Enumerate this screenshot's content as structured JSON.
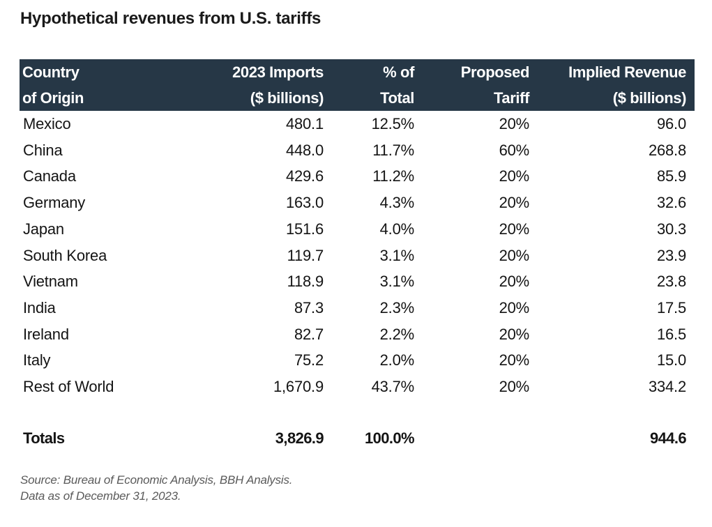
{
  "title": "Hypothetical revenues from U.S. tariffs",
  "table": {
    "columns": [
      {
        "line1": "Country",
        "line2": "of Origin"
      },
      {
        "line1": "2023 Imports",
        "line2": "($ billions)"
      },
      {
        "line1": "% of",
        "line2": "Total"
      },
      {
        "line1": "Proposed",
        "line2": "Tariff"
      },
      {
        "line1": "Implied Revenue",
        "line2": "($ billions)"
      }
    ],
    "rows": [
      {
        "country": "Mexico",
        "imports": "480.1",
        "pct_total": "12.5%",
        "tariff": "20%",
        "revenue": "96.0"
      },
      {
        "country": "China",
        "imports": "448.0",
        "pct_total": "11.7%",
        "tariff": "60%",
        "revenue": "268.8"
      },
      {
        "country": "Canada",
        "imports": "429.6",
        "pct_total": "11.2%",
        "tariff": "20%",
        "revenue": "85.9"
      },
      {
        "country": "Germany",
        "imports": "163.0",
        "pct_total": "4.3%",
        "tariff": "20%",
        "revenue": "32.6"
      },
      {
        "country": "Japan",
        "imports": "151.6",
        "pct_total": "4.0%",
        "tariff": "20%",
        "revenue": "30.3"
      },
      {
        "country": "South Korea",
        "imports": "119.7",
        "pct_total": "3.1%",
        "tariff": "20%",
        "revenue": "23.9"
      },
      {
        "country": "Vietnam",
        "imports": "118.9",
        "pct_total": "3.1%",
        "tariff": "20%",
        "revenue": "23.8"
      },
      {
        "country": "India",
        "imports": "87.3",
        "pct_total": "2.3%",
        "tariff": "20%",
        "revenue": "17.5"
      },
      {
        "country": "Ireland",
        "imports": "82.7",
        "pct_total": "2.2%",
        "tariff": "20%",
        "revenue": "16.5"
      },
      {
        "country": "Italy",
        "imports": "75.2",
        "pct_total": "2.0%",
        "tariff": "20%",
        "revenue": "15.0"
      },
      {
        "country": "Rest of World",
        "imports": "1,670.9",
        "pct_total": "43.7%",
        "tariff": "20%",
        "revenue": "334.2"
      }
    ],
    "totals": {
      "label": "Totals",
      "imports": "3,826.9",
      "pct_total": "100.0%",
      "tariff": "",
      "revenue": "944.6"
    }
  },
  "footnote": {
    "source": "Source: Bureau of Economic Analysis, BBH Analysis.",
    "date": "Data as of December 31, 2023."
  },
  "colors": {
    "header_bg": "#263746",
    "header_text": "#ffffff",
    "footnote_text": "#5a5a5a"
  }
}
